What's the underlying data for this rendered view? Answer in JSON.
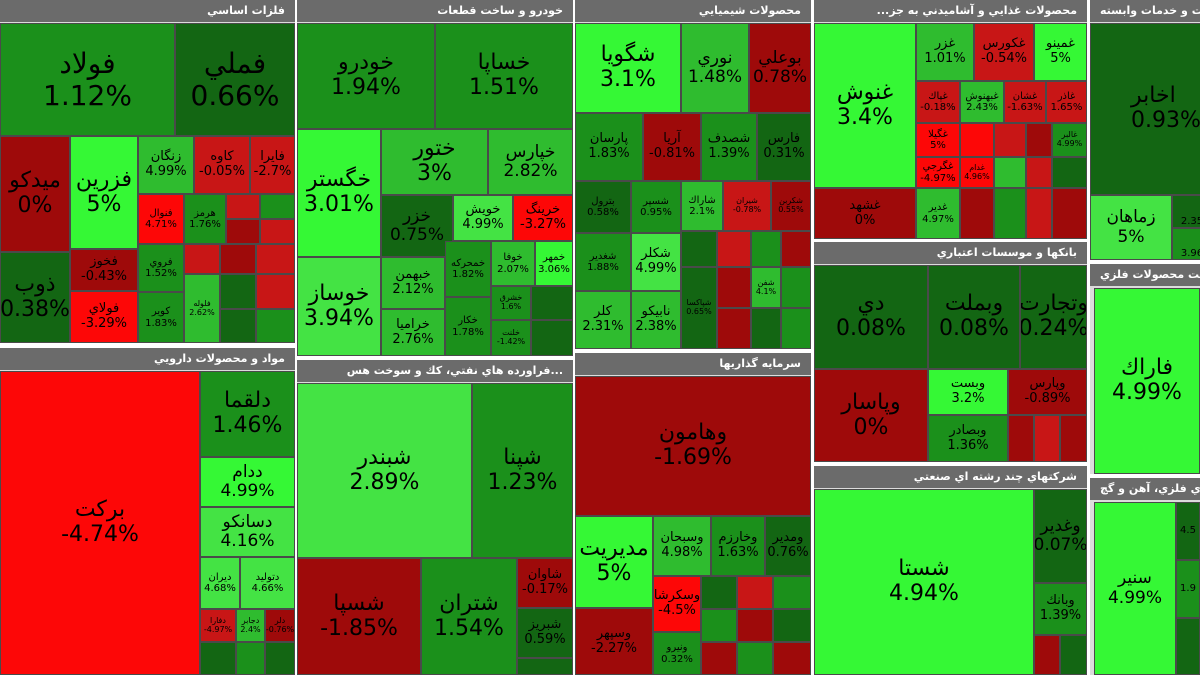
{
  "colors": {
    "dark_red": "#9e0a0a",
    "red": "#c81616",
    "bright_red": "#fd0707",
    "dark_green": "#136613",
    "green": "#1b901b",
    "bright_green": "#2fbc2f",
    "light_green": "#44e344",
    "header_bg": "#6b6b6b"
  },
  "panels": {
    "metals": {
      "title": "فلزات اساسي",
      "tiles": [
        {
          "name": "فولاد",
          "pct": "1.12%"
        },
        {
          "name": "فملي",
          "pct": "0.66%"
        },
        {
          "name": "ميدكو",
          "pct": "0%"
        },
        {
          "name": "فزرين",
          "pct": "5%"
        },
        {
          "name": "زنگان",
          "pct": "4.99%"
        },
        {
          "name": "كاوه",
          "pct": "-0.05%"
        },
        {
          "name": "فايرا",
          "pct": "-2.7%"
        },
        {
          "name": "فنوال",
          "pct": "4.71%"
        },
        {
          "name": "هرمز",
          "pct": "1.76%"
        },
        {
          "name": "ذوب",
          "pct": "0.38%"
        },
        {
          "name": "فخوز",
          "pct": "-0.43%"
        },
        {
          "name": "فروي",
          "pct": "1.52%"
        },
        {
          "name": "فولاي",
          "pct": "-3.29%"
        },
        {
          "name": "كوير",
          "pct": "1.83%"
        },
        {
          "name": "فلوله",
          "pct": "2.62%"
        }
      ]
    },
    "auto": {
      "title": "خودرو و ساخت قطعات",
      "tiles": [
        {
          "name": "خودرو",
          "pct": "1.94%"
        },
        {
          "name": "خساپا",
          "pct": "1.51%"
        },
        {
          "name": "خگستر",
          "pct": "3.01%"
        },
        {
          "name": "ختور",
          "pct": "3%"
        },
        {
          "name": "خپارس",
          "pct": "2.82%"
        },
        {
          "name": "خزر",
          "pct": "0.75%"
        },
        {
          "name": "خويش",
          "pct": "4.99%"
        },
        {
          "name": "خرينگ",
          "pct": "-3.27%"
        },
        {
          "name": "خوساز",
          "pct": "3.94%"
        },
        {
          "name": "خبهمن",
          "pct": "2.12%"
        },
        {
          "name": "خمحركه",
          "pct": "1.82%"
        },
        {
          "name": "خوفا",
          "pct": "2.07%"
        },
        {
          "name": "خمهر",
          "pct": "3.06%"
        },
        {
          "name": "خراميا",
          "pct": "2.76%"
        },
        {
          "name": "خكار",
          "pct": "1.78%"
        },
        {
          "name": "خشرق",
          "pct": "1.6%"
        },
        {
          "name": "خلنت",
          "pct": "-1.42%"
        }
      ]
    },
    "chem": {
      "title": "محصولات شيميايي",
      "tiles": [
        {
          "name": "شگويا",
          "pct": "3.1%"
        },
        {
          "name": "نوري",
          "pct": "1.48%"
        },
        {
          "name": "بوعلي",
          "pct": "0.78%"
        },
        {
          "name": "پارسان",
          "pct": "1.83%"
        },
        {
          "name": "آريا",
          "pct": "-0.81%"
        },
        {
          "name": "شصدف",
          "pct": "1.39%"
        },
        {
          "name": "فارس",
          "pct": "0.31%"
        },
        {
          "name": "بترول",
          "pct": "0.58%"
        },
        {
          "name": "شسپر",
          "pct": "0.95%"
        },
        {
          "name": "شاراك",
          "pct": "2.1%"
        },
        {
          "name": "شيران",
          "pct": "-0.78%"
        },
        {
          "name": "شكربن",
          "pct": "0.55%"
        },
        {
          "name": "شغدير",
          "pct": "1.88%"
        },
        {
          "name": "شكلر",
          "pct": "4.99%"
        },
        {
          "name": "كلر",
          "pct": "2.31%"
        },
        {
          "name": "نابيكو",
          "pct": "2.38%"
        },
        {
          "name": "شپاكسا",
          "pct": "0.65%"
        },
        {
          "name": "شفن",
          "pct": "4.1%"
        }
      ]
    },
    "food": {
      "title": "محصولات غذايي و آشاميدني به جز...",
      "tiles": [
        {
          "name": "غنوش",
          "pct": "3.4%"
        },
        {
          "name": "غزر",
          "pct": "1.01%"
        },
        {
          "name": "غكورس",
          "pct": "-0.54%"
        },
        {
          "name": "غمينو",
          "pct": "5%"
        },
        {
          "name": "غپاك",
          "pct": "-0.18%"
        },
        {
          "name": "غبهنوش",
          "pct": "2.43%"
        },
        {
          "name": "غشان",
          "pct": "-1.63%"
        },
        {
          "name": "غاذر",
          "pct": "1.65%"
        },
        {
          "name": "غگيلا",
          "pct": "5%"
        },
        {
          "name": "غالبر",
          "pct": "4.99%"
        },
        {
          "name": "غگرجي",
          "pct": "-4.97%"
        },
        {
          "name": "غدام",
          "pct": "4.96%"
        },
        {
          "name": "غشهد",
          "pct": "0%"
        },
        {
          "name": "غدير",
          "pct": "4.97%"
        }
      ]
    },
    "telecom": {
      "title": "اطلاعات و ارتباطات و خدمات وابسته",
      "tiles": [
        {
          "name": "اخابر",
          "pct": "0.93%"
        },
        {
          "name": "زماهان",
          "pct": "5%"
        },
        {
          "name": "",
          "pct": "2.35"
        },
        {
          "name": "",
          "pct": "3.96"
        }
      ]
    },
    "pharma": {
      "title": "مواد و محصولات دارويي",
      "tiles": [
        {
          "name": "بركت",
          "pct": "-4.74%"
        },
        {
          "name": "دلقما",
          "pct": "1.46%"
        },
        {
          "name": "ددام",
          "pct": "4.99%"
        },
        {
          "name": "دسانكو",
          "pct": "4.16%"
        },
        {
          "name": "ديران",
          "pct": "4.68%"
        },
        {
          "name": "دتوليد",
          "pct": "4.66%"
        },
        {
          "name": "دفارا",
          "pct": "-4.97%"
        },
        {
          "name": "دجابر",
          "pct": "2.4%"
        },
        {
          "name": "دلر",
          "pct": "-0.76%"
        }
      ]
    },
    "oil": {
      "title": "...فراورده هاي نفتي، كك و سوخت هس",
      "tiles": [
        {
          "name": "شبندر",
          "pct": "2.89%"
        },
        {
          "name": "شپنا",
          "pct": "1.23%"
        },
        {
          "name": "شسپا",
          "pct": "-1.85%"
        },
        {
          "name": "شتران",
          "pct": "1.54%"
        },
        {
          "name": "شاوان",
          "pct": "-0.17%"
        },
        {
          "name": "شبريز",
          "pct": "0.59%"
        }
      ]
    },
    "invest": {
      "title": "سرمايه گذاريها",
      "tiles": [
        {
          "name": "وهامون",
          "pct": "-1.69%"
        },
        {
          "name": "مديريت",
          "pct": "5%"
        },
        {
          "name": "وسبحان",
          "pct": "4.98%"
        },
        {
          "name": "وخارزم",
          "pct": "1.63%"
        },
        {
          "name": "ومدير",
          "pct": "0.76%"
        },
        {
          "name": "وسكرشا",
          "pct": "-4.5%"
        },
        {
          "name": "وسپهر",
          "pct": "-2.27%"
        },
        {
          "name": "ونيرو",
          "pct": "0.32%"
        }
      ]
    },
    "banks": {
      "title": "بانكها و موسسات اعتباري",
      "tiles": [
        {
          "name": "دي",
          "pct": "0.08%"
        },
        {
          "name": "وبملت",
          "pct": "0.08%"
        },
        {
          "name": "وتجارت",
          "pct": "0.24%"
        },
        {
          "name": "وپاسار",
          "pct": "0%"
        },
        {
          "name": "وبست",
          "pct": "3.2%"
        },
        {
          "name": "وپارس",
          "pct": "-0.89%"
        },
        {
          "name": "وبصادر",
          "pct": "1.36%"
        }
      ]
    },
    "multi": {
      "title": "شركتهاي چند رشته اي صنعتي",
      "tiles": [
        {
          "name": "شستا",
          "pct": "4.94%"
        },
        {
          "name": "وغدير",
          "pct": "0.07%"
        },
        {
          "name": "وبانك",
          "pct": "1.39%"
        }
      ]
    },
    "metal_products": {
      "title": "ساخت محصولات فلزي",
      "tiles": [
        {
          "name": "فاراك",
          "pct": "4.99%"
        }
      ]
    },
    "mining": {
      "title": "استخراج كانه هاي فلزي، آهن و گچ",
      "tiles": [
        {
          "name": "سنير",
          "pct": "4.99%"
        },
        {
          "name": "",
          "pct": "4.5"
        },
        {
          "name": "",
          "pct": "1.9"
        }
      ]
    }
  }
}
